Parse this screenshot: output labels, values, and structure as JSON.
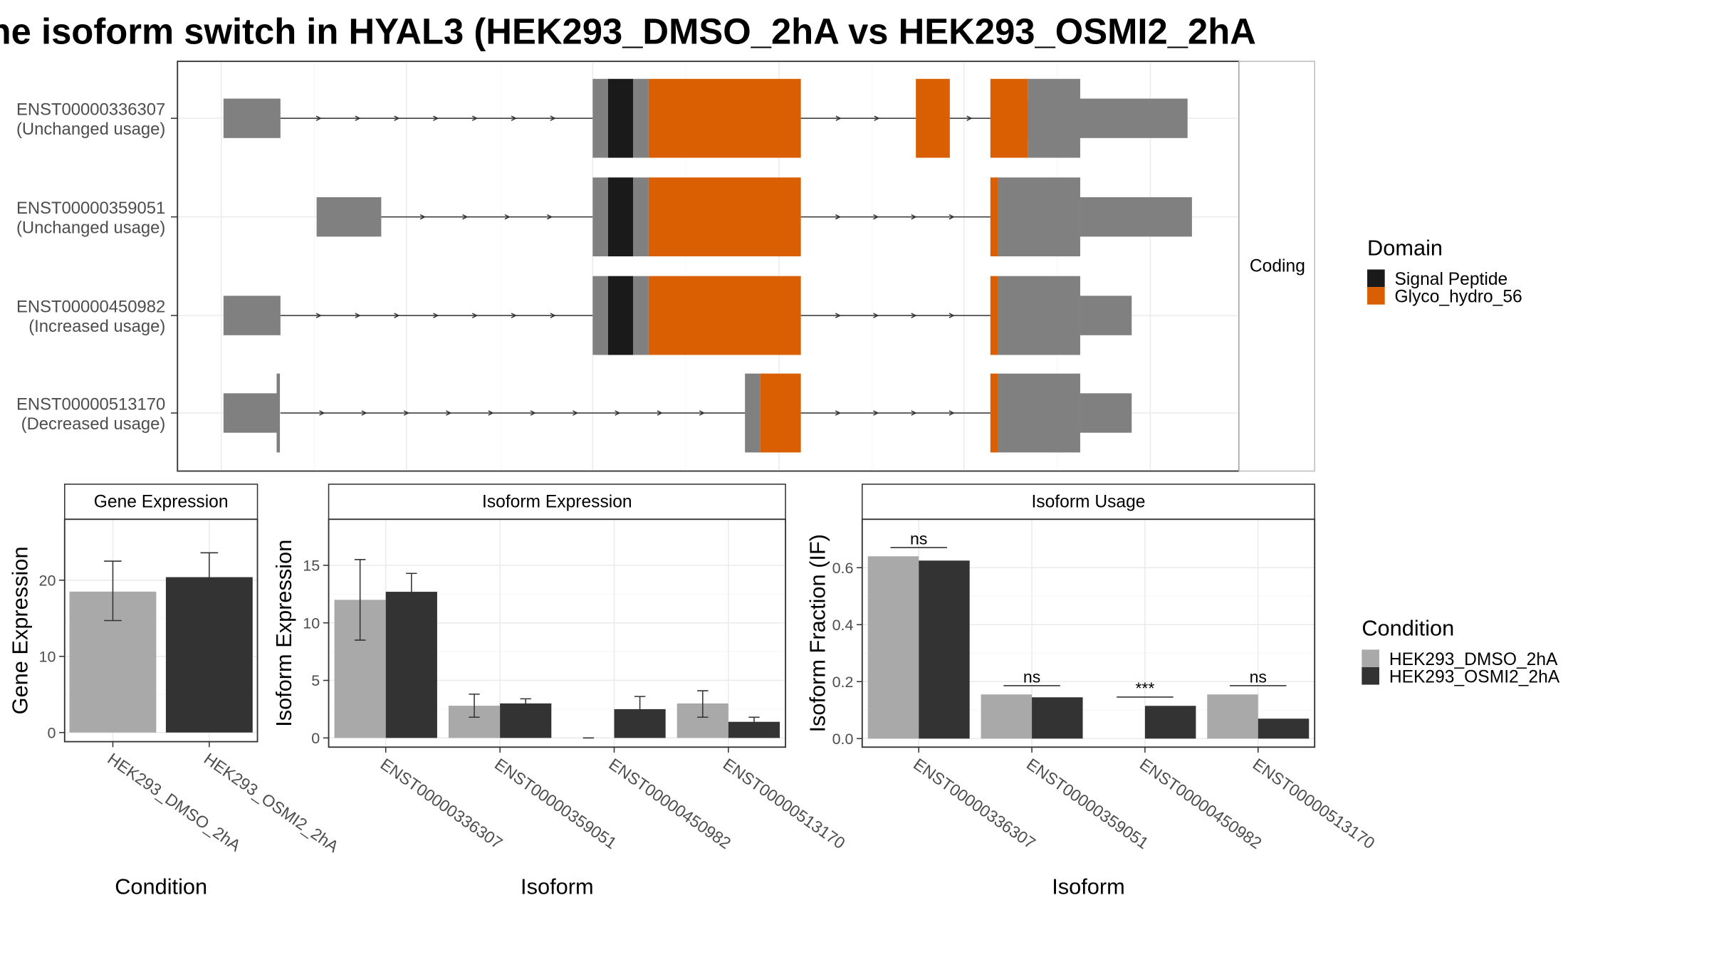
{
  "title": "he isoform switch in HYAL3 (HEK293_DMSO_2hA vs HEK293_OSMI2_2hA",
  "colors": {
    "exon": "#808080",
    "signal_peptide": "#1a1a1a",
    "glyco": "#d95f02",
    "cond1": "#a9a9a9",
    "cond2": "#333333",
    "grid": "#ebebeb",
    "panel_border": "#333333",
    "strip_border": "#bdbdbd"
  },
  "transcripts": {
    "strip_label": "Coding",
    "rows": [
      {
        "id": "ENST00000336307",
        "usage": "(Unchanged usage)"
      },
      {
        "id": "ENST00000359051",
        "usage": "(Unchanged usage)"
      },
      {
        "id": "ENST00000450982",
        "usage": "(Increased usage)"
      },
      {
        "id": "ENST00000513170",
        "usage": "(Decreased usage)"
      }
    ]
  },
  "domain_legend": {
    "title": "Domain",
    "items": [
      {
        "label": "Signal Peptide",
        "color": "#1a1a1a"
      },
      {
        "label": "Glyco_hydro_56",
        "color": "#d95f02"
      }
    ]
  },
  "condition_legend": {
    "title": "Condition",
    "items": [
      {
        "label": "HEK293_DMSO_2hA",
        "color": "#a9a9a9"
      },
      {
        "label": "HEK293_OSMI2_2hA",
        "color": "#333333"
      }
    ]
  },
  "chart_data": [
    {
      "type": "bar",
      "title": "Gene Expression",
      "xlabel": "Condition",
      "ylabel": "Gene Expression",
      "categories": [
        "HEK293_DMSO_2hA",
        "HEK293_OSMI2_2hA"
      ],
      "values": [
        18.5,
        20.4
      ],
      "error_low": [
        14.7,
        17.2
      ],
      "error_high": [
        22.5,
        23.6
      ],
      "ylim": [
        -1.2,
        28
      ],
      "yticks": [
        0,
        10,
        20
      ]
    },
    {
      "type": "bar",
      "title": "Isoform Expression",
      "xlabel": "Isoform",
      "ylabel": "Isoform Expression",
      "categories": [
        "ENST00000336307",
        "ENST00000359051",
        "ENST00000450982",
        "ENST00000513170"
      ],
      "series": [
        {
          "name": "HEK293_DMSO_2hA",
          "values": [
            12.0,
            2.8,
            0.0,
            3.0
          ],
          "error_low": [
            8.5,
            1.8,
            0.0,
            1.8
          ],
          "error_high": [
            15.5,
            3.8,
            0.0,
            4.1
          ]
        },
        {
          "name": "HEK293_OSMI2_2hA",
          "values": [
            12.7,
            3.0,
            2.5,
            1.4
          ],
          "error_low": [
            11.2,
            2.6,
            1.4,
            1.0
          ],
          "error_high": [
            14.3,
            3.4,
            3.6,
            1.8
          ]
        }
      ],
      "ylim": [
        -0.8,
        19
      ],
      "yticks": [
        0,
        5,
        10,
        15
      ]
    },
    {
      "type": "bar",
      "title": "Isoform Usage",
      "xlabel": "Isoform",
      "ylabel": "Isoform Fraction (IF)",
      "categories": [
        "ENST00000336307",
        "ENST00000359051",
        "ENST00000450982",
        "ENST00000513170"
      ],
      "series": [
        {
          "name": "HEK293_DMSO_2hA",
          "values": [
            0.64,
            0.155,
            0.0,
            0.155
          ]
        },
        {
          "name": "HEK293_OSMI2_2hA",
          "values": [
            0.625,
            0.145,
            0.115,
            0.07
          ]
        }
      ],
      "annotations": [
        "ns",
        "ns",
        "***",
        "ns"
      ],
      "ylim": [
        -0.03,
        0.77
      ],
      "yticks": [
        0.0,
        0.2,
        0.4,
        0.6
      ]
    }
  ]
}
